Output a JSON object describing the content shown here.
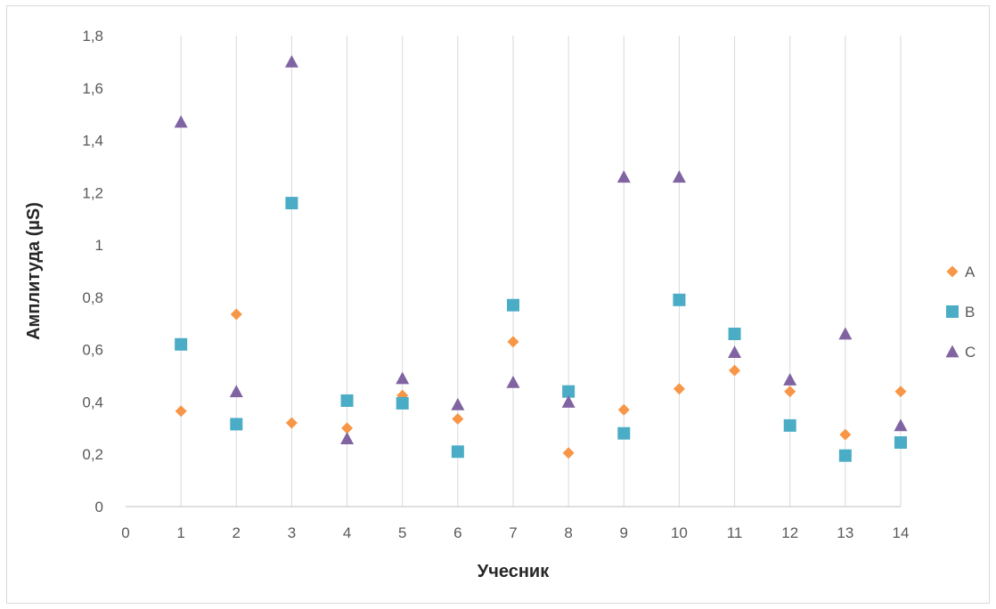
{
  "chart_data": {
    "type": "scatter",
    "title": "",
    "xlabel": "Учесник",
    "ylabel": "Амплитуда (µS)",
    "xlim": [
      0,
      14
    ],
    "ylim": [
      0,
      1.8
    ],
    "x_ticks": [
      "0",
      "1",
      "2",
      "3",
      "4",
      "5",
      "6",
      "7",
      "8",
      "9",
      "10",
      "11",
      "12",
      "13",
      "14"
    ],
    "y_ticks": [
      "0",
      "0,2",
      "0,4",
      "0,6",
      "0,8",
      "1",
      "1,2",
      "1,4",
      "1,6",
      "1,8"
    ],
    "grid": "vertical",
    "legend_position": "right",
    "series": [
      {
        "name": "A",
        "marker": "diamond",
        "color": "#F79646",
        "x": [
          1,
          2,
          3,
          4,
          5,
          6,
          7,
          8,
          9,
          10,
          11,
          12,
          13,
          14
        ],
        "y": [
          0.365,
          0.735,
          0.32,
          0.3,
          0.425,
          0.335,
          0.63,
          0.205,
          0.37,
          0.45,
          0.52,
          0.44,
          0.275,
          0.44
        ]
      },
      {
        "name": "B",
        "marker": "square",
        "color": "#4BACC6",
        "x": [
          1,
          2,
          3,
          4,
          5,
          6,
          7,
          8,
          9,
          10,
          11,
          12,
          13,
          14
        ],
        "y": [
          0.62,
          0.315,
          1.16,
          0.405,
          0.395,
          0.21,
          0.77,
          0.44,
          0.28,
          0.79,
          0.66,
          0.31,
          0.195,
          0.245
        ]
      },
      {
        "name": "C",
        "marker": "triangle",
        "color": "#8064A2",
        "x": [
          1,
          2,
          3,
          4,
          5,
          6,
          7,
          8,
          9,
          10,
          11,
          12,
          13,
          14
        ],
        "y": [
          1.47,
          0.44,
          1.7,
          0.26,
          0.49,
          0.39,
          0.475,
          0.4,
          1.26,
          1.26,
          0.59,
          0.485,
          0.66,
          0.31
        ]
      }
    ]
  }
}
